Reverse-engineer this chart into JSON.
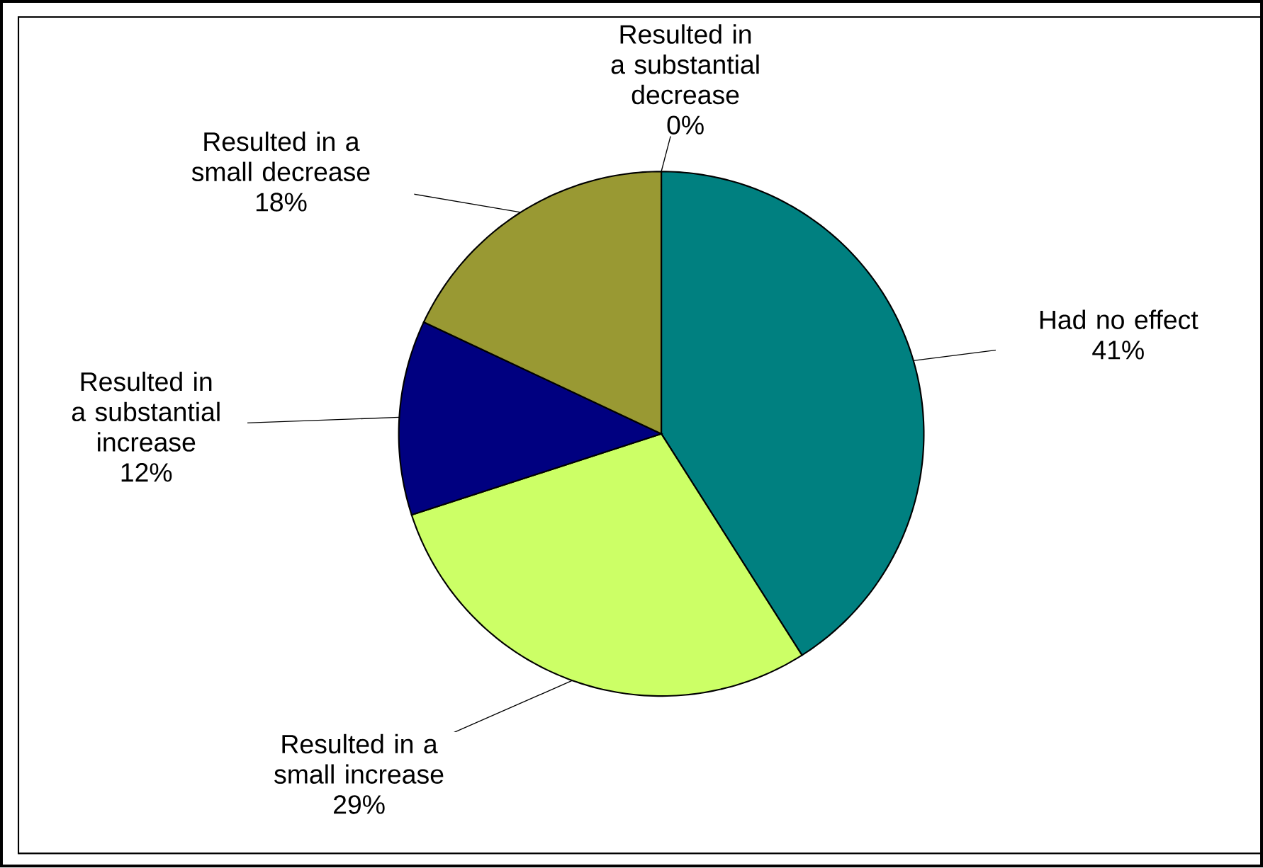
{
  "chart_data": {
    "type": "pie",
    "categories": [
      "Had no effect",
      "Resulted in a small increase",
      "Resulted in a substantial increase",
      "Resulted in a small decrease",
      "Resulted in a substantial decrease"
    ],
    "values": [
      41,
      29,
      12,
      18,
      0
    ],
    "colors": [
      "#008080",
      "#ccff66",
      "#000080",
      "#999933",
      "#ffffff"
    ],
    "value_labels": [
      "41%",
      "29%",
      "12%",
      "18%",
      "0%"
    ]
  }
}
